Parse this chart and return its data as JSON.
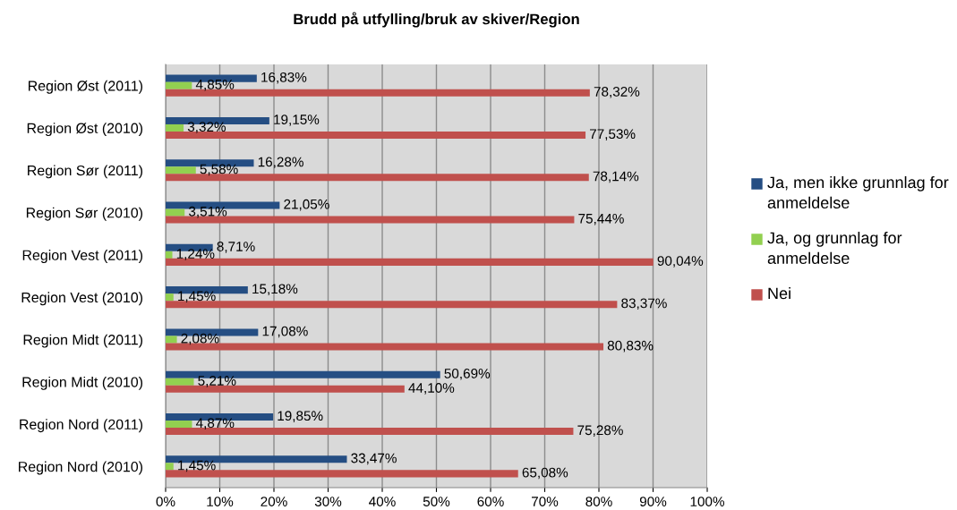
{
  "chart_data": {
    "type": "bar",
    "orientation": "horizontal",
    "title": "Brudd på utfylling/bruk av skiver/Region",
    "categories": [
      "Region Øst (2011)",
      "Region Øst (2010)",
      "Region Sør (2011)",
      "Region Sør (2010)",
      "Region Vest (2011)",
      "Region Vest (2010)",
      "Region Midt (2011)",
      "Region Midt (2010)",
      "Region Nord (2011)",
      "Region Nord (2010)"
    ],
    "series": [
      {
        "name": "Ja, men ikke grunnlag for anmeldelse",
        "color": "#254e83",
        "values": [
          16.83,
          19.15,
          16.28,
          21.05,
          8.71,
          15.18,
          17.08,
          50.69,
          19.85,
          33.47
        ],
        "value_labels": [
          "16,83%",
          "19,15%",
          "16,28%",
          "21,05%",
          "8,71%",
          "15,18%",
          "17,08%",
          "50,69%",
          "19,85%",
          "33,47%"
        ]
      },
      {
        "name": "Ja, og grunnlag for anmeldelse",
        "color": "#92d050",
        "values": [
          4.85,
          3.32,
          5.58,
          3.51,
          1.24,
          1.45,
          2.08,
          5.21,
          4.87,
          1.45
        ],
        "value_labels": [
          "4,85%",
          "3,32%",
          "5,58%",
          "3,51%",
          "1,24%",
          "1,45%",
          "2,08%",
          "5,21%",
          "4,87%",
          "1,45%"
        ]
      },
      {
        "name": "Nei",
        "color": "#c0504d",
        "values": [
          78.32,
          77.53,
          78.14,
          75.44,
          90.04,
          83.37,
          80.83,
          44.1,
          75.28,
          65.08
        ],
        "value_labels": [
          "78,32%",
          "77,53%",
          "78,14%",
          "75,44%",
          "90,04%",
          "83,37%",
          "80,83%",
          "44,10%",
          "75,28%",
          "65,08%"
        ]
      }
    ],
    "xlim": [
      0,
      100
    ],
    "xticks": [
      {
        "value": 0,
        "label": "0%"
      },
      {
        "value": 10,
        "label": "10%"
      },
      {
        "value": 20,
        "label": "20%"
      },
      {
        "value": 30,
        "label": "30%"
      },
      {
        "value": 40,
        "label": "40%"
      },
      {
        "value": 50,
        "label": "50%"
      },
      {
        "value": 60,
        "label": "60%"
      },
      {
        "value": 70,
        "label": "70%"
      },
      {
        "value": 80,
        "label": "80%"
      },
      {
        "value": 90,
        "label": "90%"
      },
      {
        "value": 100,
        "label": "100%"
      }
    ],
    "grid": "x",
    "legend": "right"
  }
}
